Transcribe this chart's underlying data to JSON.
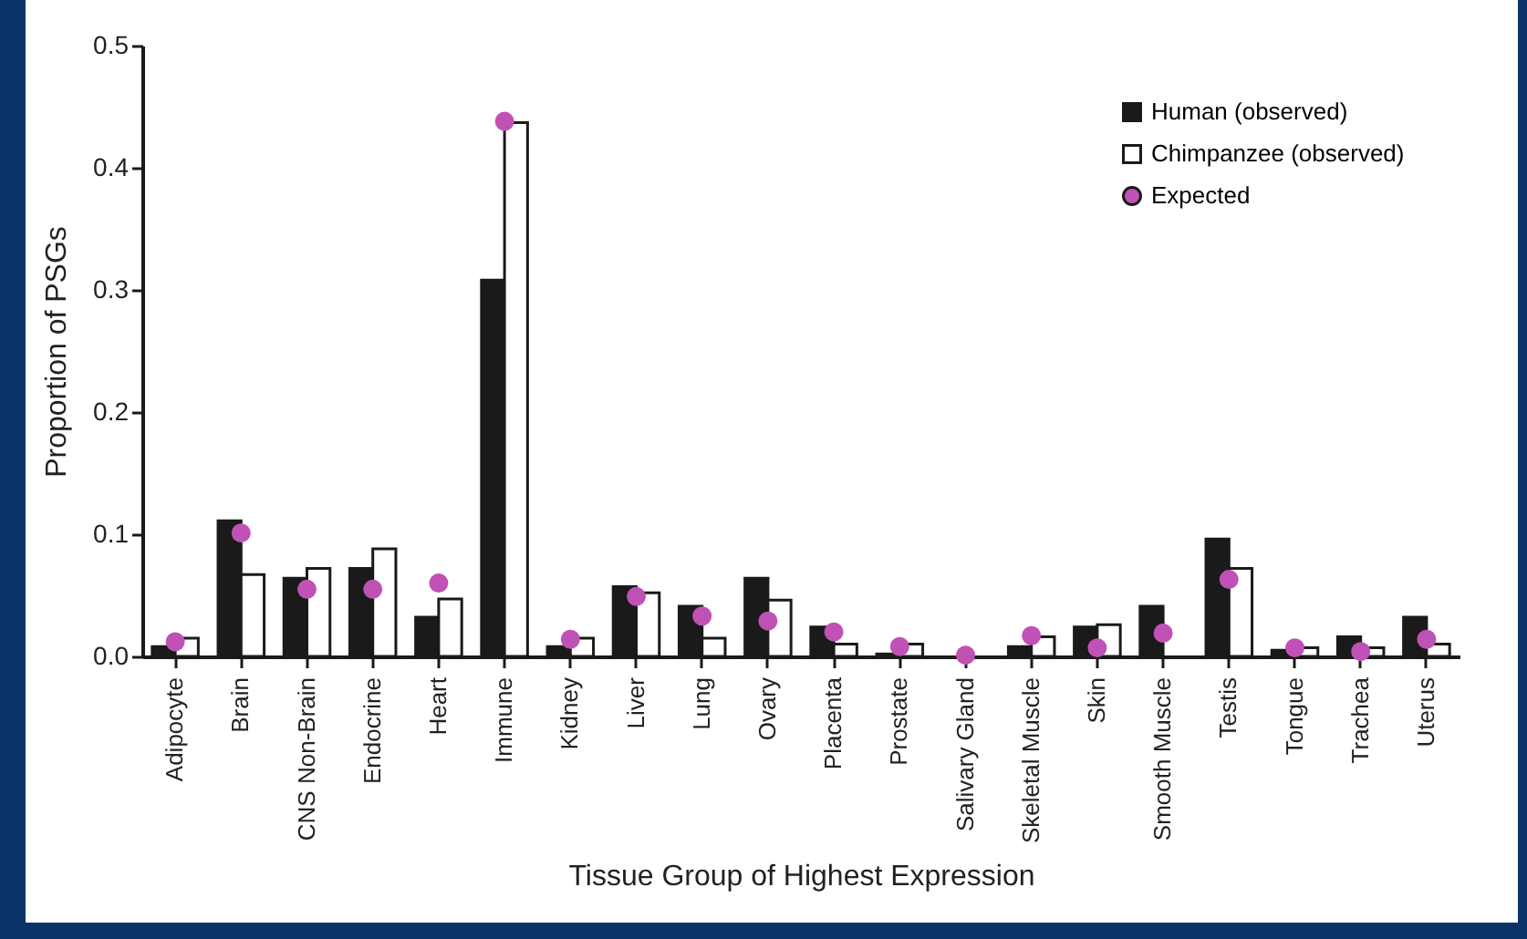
{
  "chart_data": {
    "type": "bar",
    "xlabel": "Tissue Group of Highest Expression",
    "ylabel": "Proportion of PSGs",
    "categories": [
      "Adipocyte",
      "Brain",
      "CNS Non-Brain",
      "Endocrine",
      "Heart",
      "Immune",
      "Kidney",
      "Liver",
      "Lung",
      "Ovary",
      "Placenta",
      "Prostate",
      "Salivary Gland",
      "Skeletal Muscle",
      "Skin",
      "Smooth Muscle",
      "Testis",
      "Tongue",
      "Trachea",
      "Uterus"
    ],
    "series": [
      {
        "name": "Human (observed)",
        "color": "#1a1a1a",
        "values": [
          0.008,
          0.111,
          0.064,
          0.072,
          0.032,
          0.308,
          0.008,
          0.057,
          0.041,
          0.064,
          0.024,
          0.002,
          0,
          0.008,
          0.024,
          0.041,
          0.096,
          0.005,
          0.016,
          0.032
        ]
      },
      {
        "name": "Chimpanzee (observed)",
        "color": "#ffffff",
        "values": [
          0.015,
          0.067,
          0.072,
          0.088,
          0.047,
          0.437,
          0.015,
          0.052,
          0.015,
          0.046,
          0.01,
          0.01,
          0,
          0.016,
          0.026,
          0,
          0.072,
          0.007,
          0.007,
          0.01
        ]
      },
      {
        "name": "Expected",
        "type": "scatter",
        "color": "#c051b5",
        "marker": "circle",
        "values": [
          0.012,
          0.101,
          0.055,
          0.055,
          0.06,
          0.438,
          0.014,
          0.049,
          0.033,
          0.029,
          0.02,
          0.008,
          0.001,
          0.017,
          0.007,
          0.019,
          0.063,
          0.007,
          0.004,
          0.014
        ]
      }
    ],
    "ylim": [
      0,
      0.5
    ],
    "yticks": [
      {
        "value": 0,
        "label": "0.0"
      },
      0.1,
      0.2,
      0.3,
      0.4,
      0.5
    ],
    "grid": false,
    "legend": "top right"
  }
}
